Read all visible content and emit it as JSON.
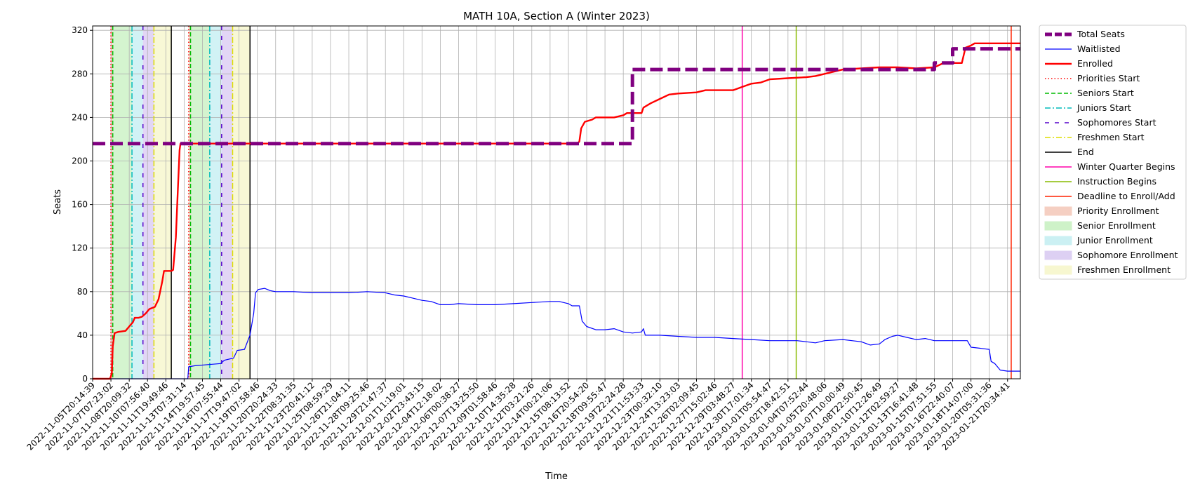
{
  "chart_data": {
    "type": "line",
    "title": "MATH 10A, Section A (Winter 2023)",
    "xlabel": "Time",
    "ylabel": "Seats",
    "ylim": [
      0,
      324
    ],
    "yticks": [
      0,
      40,
      80,
      120,
      160,
      200,
      240,
      280,
      320
    ],
    "grid": true,
    "legend_position": "outside-right",
    "x_tick_labels": [
      "2022-11-05T20:14:39",
      "2022-11-07T07:23:02",
      "2022-11-08T20:09:32",
      "2022-11-10T07:56:40",
      "2022-11-11T19:49:46",
      "2022-11-13T07:31:14",
      "2022-11-14T19:57:45",
      "2022-11-16T07:55:44",
      "2022-11-17T19:47:02",
      "2022-11-19T07:58:46",
      "2022-11-20T20:24:33",
      "2022-11-22T08:31:35",
      "2022-11-23T20:41:12",
      "2022-11-25T08:59:29",
      "2022-11-26T21:04:11",
      "2022-11-28T09:25:46",
      "2022-11-29T21:47:37",
      "2022-12-01T11:19:01",
      "2022-12-02T23:43:15",
      "2022-12-04T12:18:02",
      "2022-12-06T00:38:27",
      "2022-12-07T13:25:50",
      "2022-12-09T01:58:46",
      "2022-12-10T14:35:28",
      "2022-12-12T03:21:26",
      "2022-12-14T00:21:06",
      "2022-12-15T08:13:52",
      "2022-12-16T20:54:20",
      "2022-12-18T09:55:47",
      "2022-12-19T22:24:28",
      "2022-12-21T11:53:33",
      "2022-12-23T00:32:10",
      "2022-12-24T13:23:03",
      "2022-12-26T02:09:45",
      "2022-12-27T15:02:46",
      "2022-12-29T03:48:27",
      "2022-12-30T17:01:34",
      "2023-01-01T05:54:47",
      "2023-01-02T18:42:51",
      "2023-01-04T07:52:44",
      "2023-01-05T20:48:06",
      "2023-01-07T10:00:49",
      "2023-01-08T22:50:45",
      "2023-01-10T12:26:49",
      "2023-01-12T02:59:27",
      "2023-01-13T16:41:48",
      "2023-01-15T07:51:55",
      "2023-01-16T22:40:07",
      "2023-01-18T14:07:00",
      "2023-01-20T05:31:36",
      "2023-01-21T20:34:41"
    ],
    "x_domain": [
      0,
      50.7
    ],
    "series": [
      {
        "name": "Total Seats",
        "color": "#800080",
        "style": "dashed-thick",
        "points": [
          [
            0,
            216
          ],
          [
            29.5,
            216
          ],
          [
            29.5,
            284
          ],
          [
            46,
            284
          ],
          [
            46,
            290
          ],
          [
            47,
            290
          ],
          [
            47,
            303
          ],
          [
            50.7,
            303
          ]
        ]
      },
      {
        "name": "Waitlisted",
        "color": "#0000ff",
        "style": "solid-thin",
        "points": [
          [
            0,
            0
          ],
          [
            5.2,
            0
          ],
          [
            5.25,
            11
          ],
          [
            5.6,
            12
          ],
          [
            6.3,
            13
          ],
          [
            7.0,
            14
          ],
          [
            7.2,
            17
          ],
          [
            7.7,
            19
          ],
          [
            7.9,
            26
          ],
          [
            8.3,
            27
          ],
          [
            8.6,
            40
          ],
          [
            8.8,
            60
          ],
          [
            8.9,
            79
          ],
          [
            9.05,
            82
          ],
          [
            9.4,
            83
          ],
          [
            9.7,
            81
          ],
          [
            10,
            80
          ],
          [
            11,
            80
          ],
          [
            12,
            79
          ],
          [
            13,
            79
          ],
          [
            14,
            79
          ],
          [
            15,
            80
          ],
          [
            16,
            79
          ],
          [
            16.5,
            77
          ],
          [
            17,
            76
          ],
          [
            17.5,
            74
          ],
          [
            18,
            72
          ],
          [
            18.5,
            71
          ],
          [
            19,
            68
          ],
          [
            19.5,
            68
          ],
          [
            20,
            69
          ],
          [
            21,
            68
          ],
          [
            22,
            68
          ],
          [
            23,
            69
          ],
          [
            24,
            70
          ],
          [
            25,
            71
          ],
          [
            25.5,
            71
          ],
          [
            26,
            69
          ],
          [
            26.2,
            67
          ],
          [
            26.6,
            67
          ],
          [
            26.75,
            53
          ],
          [
            27,
            48
          ],
          [
            27.5,
            45
          ],
          [
            28,
            45
          ],
          [
            28.5,
            46
          ],
          [
            29,
            43
          ],
          [
            29.5,
            42
          ],
          [
            30,
            43
          ],
          [
            30.1,
            46
          ],
          [
            30.2,
            40
          ],
          [
            31,
            40
          ],
          [
            32,
            39
          ],
          [
            33,
            38
          ],
          [
            34,
            38
          ],
          [
            35,
            37
          ],
          [
            36,
            36
          ],
          [
            37,
            35
          ],
          [
            38,
            35
          ],
          [
            38.5,
            35
          ],
          [
            39,
            34
          ],
          [
            39.5,
            33
          ],
          [
            40,
            35
          ],
          [
            41,
            36
          ],
          [
            41.5,
            35
          ],
          [
            42,
            34
          ],
          [
            42.5,
            31
          ],
          [
            43,
            32
          ],
          [
            43.3,
            36
          ],
          [
            43.7,
            39
          ],
          [
            44,
            40
          ],
          [
            44.5,
            38
          ],
          [
            45,
            36
          ],
          [
            45.5,
            37
          ],
          [
            46,
            35
          ],
          [
            47,
            35
          ],
          [
            47.8,
            35
          ],
          [
            48,
            29
          ],
          [
            48.5,
            28
          ],
          [
            49,
            27
          ],
          [
            49.1,
            16
          ],
          [
            49.3,
            14
          ],
          [
            49.6,
            8
          ],
          [
            50,
            7
          ],
          [
            50.7,
            7
          ]
        ]
      },
      {
        "name": "Enrolled",
        "color": "#ff0000",
        "style": "solid-thick",
        "points": [
          [
            0,
            0
          ],
          [
            0.95,
            0
          ],
          [
            1.05,
            5
          ],
          [
            1.1,
            30
          ],
          [
            1.2,
            42
          ],
          [
            1.4,
            43
          ],
          [
            1.8,
            44
          ],
          [
            2.0,
            48
          ],
          [
            2.2,
            52
          ],
          [
            2.3,
            56
          ],
          [
            2.5,
            56
          ],
          [
            2.7,
            57
          ],
          [
            2.9,
            60
          ],
          [
            3.1,
            64
          ],
          [
            3.4,
            66
          ],
          [
            3.6,
            73
          ],
          [
            3.8,
            89
          ],
          [
            3.9,
            99
          ],
          [
            4.3,
            99
          ],
          [
            4.4,
            100
          ],
          [
            4.55,
            130
          ],
          [
            4.65,
            170
          ],
          [
            4.75,
            210
          ],
          [
            4.8,
            216
          ],
          [
            26.5,
            216
          ],
          [
            26.6,
            218
          ],
          [
            26.7,
            230
          ],
          [
            26.9,
            236
          ],
          [
            27.3,
            238
          ],
          [
            27.5,
            240
          ],
          [
            28,
            240
          ],
          [
            28.5,
            240
          ],
          [
            29,
            242
          ],
          [
            29.2,
            244
          ],
          [
            29.5,
            244
          ],
          [
            30,
            244
          ],
          [
            30.1,
            249
          ],
          [
            30.5,
            253
          ],
          [
            31,
            257
          ],
          [
            31.5,
            261
          ],
          [
            32,
            262
          ],
          [
            33,
            263
          ],
          [
            33.5,
            265
          ],
          [
            34,
            265
          ],
          [
            35,
            265
          ],
          [
            35.5,
            268
          ],
          [
            36,
            271
          ],
          [
            36.5,
            272
          ],
          [
            37,
            275
          ],
          [
            38,
            276
          ],
          [
            39,
            277
          ],
          [
            39.5,
            278
          ],
          [
            40,
            280
          ],
          [
            40.5,
            282
          ],
          [
            41,
            284
          ],
          [
            42,
            285
          ],
          [
            43,
            286
          ],
          [
            44,
            286
          ],
          [
            45,
            285
          ],
          [
            46,
            286
          ],
          [
            46.5,
            290
          ],
          [
            47.5,
            290
          ],
          [
            47.7,
            304
          ],
          [
            48,
            306
          ],
          [
            48.2,
            308
          ],
          [
            49,
            308
          ],
          [
            50,
            308
          ],
          [
            50.7,
            308
          ]
        ]
      }
    ],
    "event_lines": [
      {
        "name": "Priorities Start",
        "x": 1.0,
        "color": "#ff0000",
        "style": "dotted"
      },
      {
        "name": "Priorities Start",
        "x": 5.25,
        "color": "#ff0000",
        "style": "dotted"
      },
      {
        "name": "Seniors Start",
        "x": 1.1,
        "color": "#00bb00",
        "style": "dashed"
      },
      {
        "name": "Seniors Start",
        "x": 5.35,
        "color": "#00bb00",
        "style": "dashed"
      },
      {
        "name": "Juniors Start",
        "x": 2.15,
        "color": "#00bbbb",
        "style": "dashdot"
      },
      {
        "name": "Juniors Start",
        "x": 6.4,
        "color": "#00bbbb",
        "style": "dashdot"
      },
      {
        "name": "Sophomores Start",
        "x": 2.75,
        "color": "#5500cc",
        "style": "loosedash"
      },
      {
        "name": "Sophomores Start",
        "x": 7.05,
        "color": "#5500cc",
        "style": "loosedash"
      },
      {
        "name": "Freshmen Start",
        "x": 3.35,
        "color": "#dddd00",
        "style": "dashdot"
      },
      {
        "name": "Freshmen Start",
        "x": 7.65,
        "color": "#dddd00",
        "style": "dashdot"
      },
      {
        "name": "End",
        "x": 4.3,
        "color": "#000000",
        "style": "solid"
      },
      {
        "name": "End",
        "x": 8.6,
        "color": "#000000",
        "style": "solid"
      },
      {
        "name": "Winter Quarter Begins",
        "x": 35.5,
        "color": "#ff00aa",
        "style": "solid"
      },
      {
        "name": "Instruction Begins",
        "x": 38.45,
        "color": "#88bb00",
        "style": "solid"
      },
      {
        "name": "Deadline to Enroll/Add",
        "x": 50.2,
        "color": "#ff2200",
        "style": "solid"
      }
    ],
    "shaded_periods": [
      {
        "name": "Priority Enrollment",
        "from": 1.0,
        "to": 1.1,
        "color": "#f4c7b8"
      },
      {
        "name": "Senior Enrollment",
        "from": 1.1,
        "to": 2.15,
        "color": "#c6f0bf"
      },
      {
        "name": "Junior Enrollment",
        "from": 2.15,
        "to": 2.75,
        "color": "#c2eef2"
      },
      {
        "name": "Sophomore Enrollment",
        "from": 2.75,
        "to": 3.35,
        "color": "#d8c8f2"
      },
      {
        "name": "Freshmen Enrollment",
        "from": 3.35,
        "to": 4.3,
        "color": "#f6f6c8"
      },
      {
        "name": "Priority Enrollment",
        "from": 5.25,
        "to": 5.35,
        "color": "#f4c7b8"
      },
      {
        "name": "Senior Enrollment",
        "from": 5.35,
        "to": 6.4,
        "color": "#c6f0bf"
      },
      {
        "name": "Junior Enrollment",
        "from": 6.4,
        "to": 7.05,
        "color": "#c2eef2"
      },
      {
        "name": "Sophomore Enrollment",
        "from": 7.05,
        "to": 7.65,
        "color": "#d8c8f2"
      },
      {
        "name": "Freshmen Enrollment",
        "from": 7.65,
        "to": 8.6,
        "color": "#f6f6c8"
      }
    ],
    "legend": [
      {
        "label": "Total Seats",
        "kind": "line",
        "color": "#800080",
        "style": "dashed-thick"
      },
      {
        "label": "Waitlisted",
        "kind": "line",
        "color": "#0000ff",
        "style": "solid-thin"
      },
      {
        "label": "Enrolled",
        "kind": "line",
        "color": "#ff0000",
        "style": "solid-thick"
      },
      {
        "label": "Priorities Start",
        "kind": "line",
        "color": "#ff0000",
        "style": "dotted"
      },
      {
        "label": "Seniors Start",
        "kind": "line",
        "color": "#00bb00",
        "style": "dashed"
      },
      {
        "label": "Juniors Start",
        "kind": "line",
        "color": "#00bbbb",
        "style": "dashdot"
      },
      {
        "label": "Sophomores Start",
        "kind": "line",
        "color": "#5500cc",
        "style": "loosedash"
      },
      {
        "label": "Freshmen Start",
        "kind": "line",
        "color": "#dddd00",
        "style": "dashdot"
      },
      {
        "label": "End",
        "kind": "line",
        "color": "#000000",
        "style": "solid"
      },
      {
        "label": "Winter Quarter Begins",
        "kind": "line",
        "color": "#ff00aa",
        "style": "solid"
      },
      {
        "label": "Instruction Begins",
        "kind": "line",
        "color": "#88bb00",
        "style": "solid"
      },
      {
        "label": "Deadline to Enroll/Add",
        "kind": "line",
        "color": "#ff2200",
        "style": "solid"
      },
      {
        "label": "Priority Enrollment",
        "kind": "patch",
        "color": "#f4c7b8"
      },
      {
        "label": "Senior Enrollment",
        "kind": "patch",
        "color": "#c6f0bf"
      },
      {
        "label": "Junior Enrollment",
        "kind": "patch",
        "color": "#c2eef2"
      },
      {
        "label": "Sophomore Enrollment",
        "kind": "patch",
        "color": "#d8c8f2"
      },
      {
        "label": "Freshmen Enrollment",
        "kind": "patch",
        "color": "#f6f6c8"
      }
    ]
  }
}
